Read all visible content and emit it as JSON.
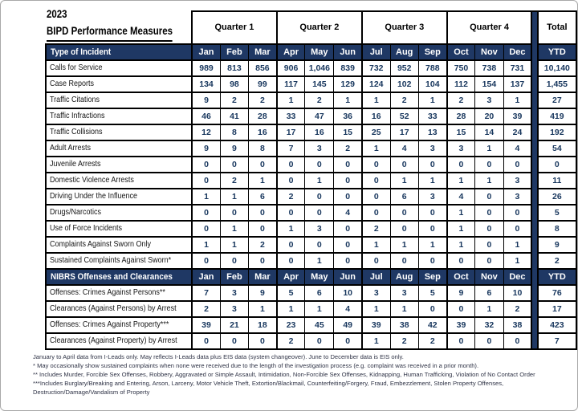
{
  "title": {
    "year": "2023",
    "name": "BIPD Performance Measures"
  },
  "quarters": [
    "Quarter 1",
    "Quarter 2",
    "Quarter 3",
    "Quarter 4"
  ],
  "total_label": "Total",
  "months": [
    "Jan",
    "Feb",
    "Mar",
    "Apr",
    "May",
    "Jun",
    "Jul",
    "Aug",
    "Sep",
    "Oct",
    "Nov",
    "Dec"
  ],
  "ytd_label": "YTD",
  "sections": [
    {
      "header": "Type of Incident",
      "rows": [
        {
          "label": "Calls for Service",
          "values": [
            "989",
            "813",
            "856",
            "906",
            "1,046",
            "839",
            "732",
            "952",
            "788",
            "750",
            "738",
            "731"
          ],
          "ytd": "10,140"
        },
        {
          "label": "Case Reports",
          "values": [
            "134",
            "98",
            "99",
            "117",
            "145",
            "129",
            "124",
            "102",
            "104",
            "112",
            "154",
            "137"
          ],
          "ytd": "1,455"
        },
        {
          "label": "Traffic Citations",
          "values": [
            "9",
            "2",
            "2",
            "1",
            "2",
            "1",
            "1",
            "2",
            "1",
            "2",
            "3",
            "1"
          ],
          "ytd": "27"
        },
        {
          "label": "Traffic Infractions",
          "values": [
            "46",
            "41",
            "28",
            "33",
            "47",
            "36",
            "16",
            "52",
            "33",
            "28",
            "20",
            "39"
          ],
          "ytd": "419"
        },
        {
          "label": "Traffic Collisions",
          "values": [
            "12",
            "8",
            "16",
            "17",
            "16",
            "15",
            "25",
            "17",
            "13",
            "15",
            "14",
            "24"
          ],
          "ytd": "192"
        },
        {
          "label": "Adult Arrests",
          "values": [
            "9",
            "9",
            "8",
            "7",
            "3",
            "2",
            "1",
            "4",
            "3",
            "3",
            "1",
            "4"
          ],
          "ytd": "54"
        },
        {
          "label": "Juvenile Arrests",
          "values": [
            "0",
            "0",
            "0",
            "0",
            "0",
            "0",
            "0",
            "0",
            "0",
            "0",
            "0",
            "0"
          ],
          "ytd": "0"
        },
        {
          "label": "Domestic Violence Arrests",
          "values": [
            "0",
            "2",
            "1",
            "0",
            "1",
            "0",
            "0",
            "1",
            "1",
            "1",
            "1",
            "3"
          ],
          "ytd": "11"
        },
        {
          "label": "Driving Under the Influence",
          "values": [
            "1",
            "1",
            "6",
            "2",
            "0",
            "0",
            "0",
            "6",
            "3",
            "4",
            "0",
            "3"
          ],
          "ytd": "26"
        },
        {
          "label": "Drugs/Narcotics",
          "values": [
            "0",
            "0",
            "0",
            "0",
            "0",
            "4",
            "0",
            "0",
            "0",
            "1",
            "0",
            "0"
          ],
          "ytd": "5"
        },
        {
          "label": "Use of Force Incidents",
          "values": [
            "0",
            "1",
            "0",
            "1",
            "3",
            "0",
            "2",
            "0",
            "0",
            "1",
            "0",
            "0"
          ],
          "ytd": "8"
        },
        {
          "label": "Complaints Against Sworn Only",
          "values": [
            "1",
            "1",
            "2",
            "0",
            "0",
            "0",
            "1",
            "1",
            "1",
            "1",
            "0",
            "1"
          ],
          "ytd": "9"
        },
        {
          "label": "Sustained Complaints Against Sworn*",
          "values": [
            "0",
            "0",
            "0",
            "0",
            "1",
            "0",
            "0",
            "0",
            "0",
            "0",
            "0",
            "1"
          ],
          "ytd": "2"
        }
      ]
    },
    {
      "header": "NIBRS Offenses and Clearances",
      "rows": [
        {
          "label": "Offenses: Crimes Against Persons**",
          "values": [
            "7",
            "3",
            "9",
            "5",
            "6",
            "10",
            "3",
            "3",
            "5",
            "9",
            "6",
            "10"
          ],
          "ytd": "76"
        },
        {
          "label": "Clearances (Against Persons) by Arrest",
          "values": [
            "2",
            "3",
            "1",
            "1",
            "1",
            "4",
            "1",
            "1",
            "0",
            "0",
            "1",
            "2"
          ],
          "ytd": "17"
        },
        {
          "label": "Offenses: Crimes Against Property***",
          "values": [
            "39",
            "21",
            "18",
            "23",
            "45",
            "49",
            "39",
            "38",
            "42",
            "39",
            "32",
            "38"
          ],
          "ytd": "423"
        },
        {
          "label": "Clearances (Against Property) by Arrest",
          "values": [
            "0",
            "0",
            "0",
            "2",
            "0",
            "0",
            "1",
            "2",
            "2",
            "0",
            "0",
            "0"
          ],
          "ytd": "7"
        }
      ]
    }
  ],
  "footnotes": [
    "January to April data from I-Leads only. May reflects I-Leads data plus EIS data (system changeover). June to December data is EIS only.",
    "* May occasionally show sustained complaints when none were received due to the length of the investigation process (e.g. complaint was received in a prior month).",
    "** Includes Murder, Forcible Sex Offenses, Robbery, Aggravated or Simple Assault, Intimidation, Non-Forcible Sex Offenses, Kidnapping, Human Trafficking, Violation of No Contact Order",
    "***Includes Burglary/Breaking and Entering, Arson, Larceny, Motor Vehicle Theft, Extortion/Blackmail, Counterfeiting/Forgery, Fraud, Embezzlement, Stolen Property Offenses, Destruction/Damage/Vandalism of Property"
  ],
  "colors": {
    "header_bg": "#1F3864",
    "header_text": "#FFFFFF",
    "value_text": "#17365D",
    "border": "#000000"
  }
}
